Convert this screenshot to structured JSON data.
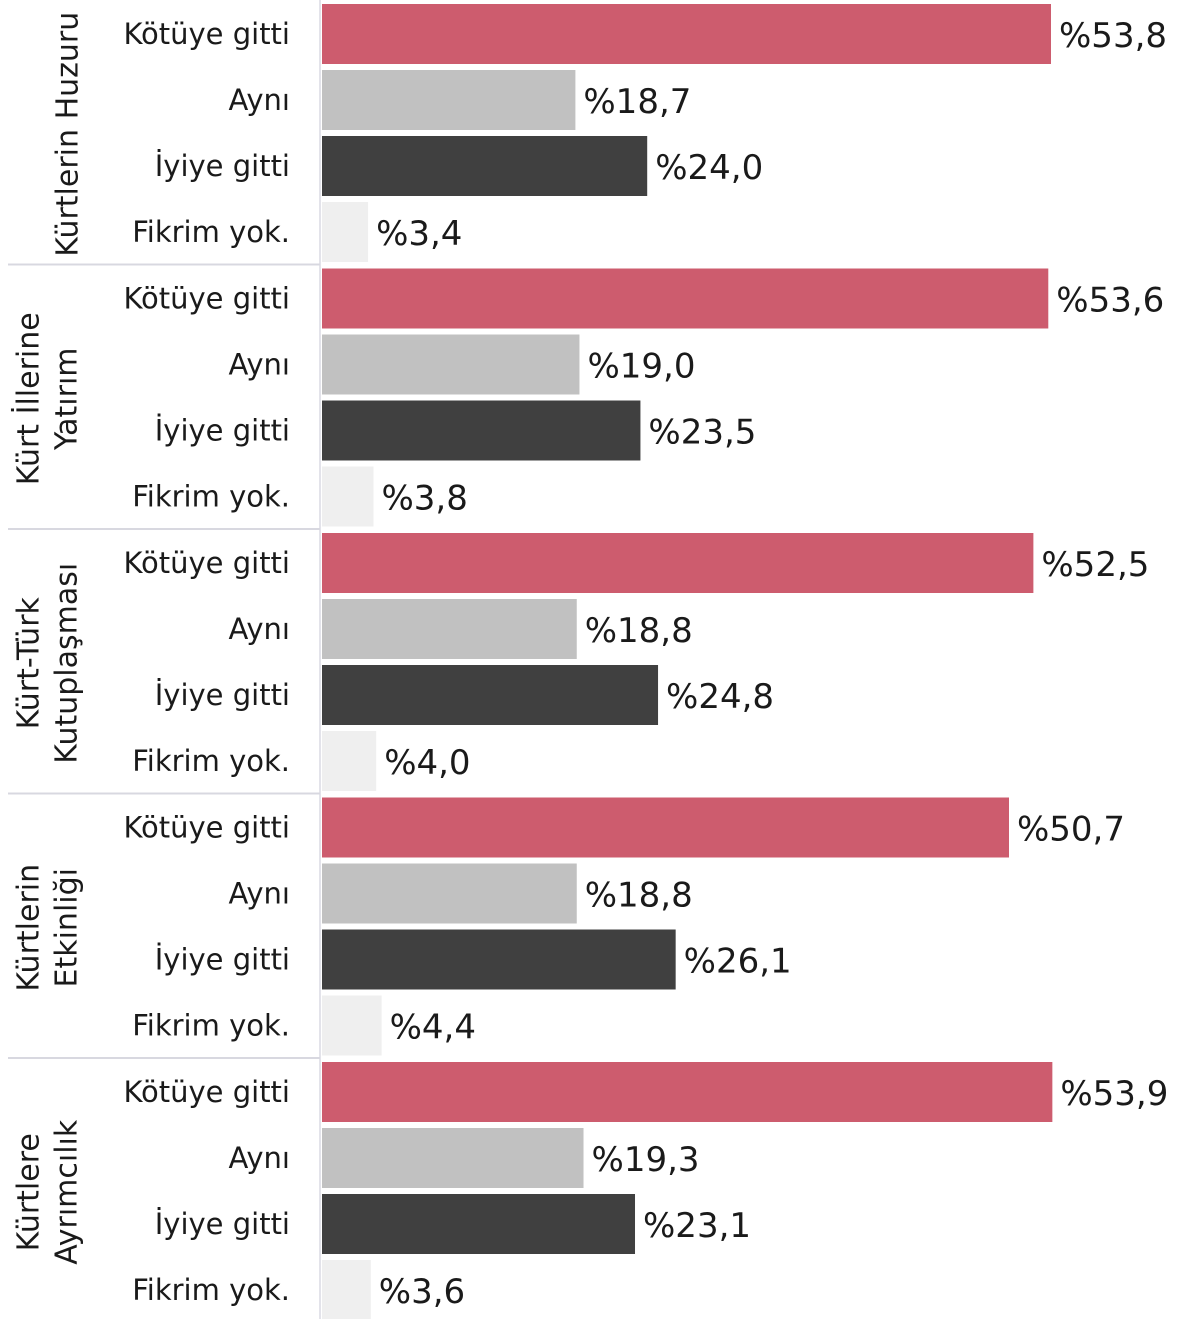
{
  "chart_data": {
    "type": "bar",
    "orientation": "horizontal",
    "categories": [
      "Kötüye gitti",
      "Aynı",
      "İyiye gitti",
      "Fikrim yok."
    ],
    "colors": [
      "#cd5c6e",
      "#c1c1c1",
      "#404040",
      "#efefef"
    ],
    "value_prefix": "%",
    "decimal_separator": ",",
    "xlim": [
      0,
      60
    ],
    "grid": false,
    "legend": "none",
    "groups": [
      {
        "title_lines": [
          "Kürtlerin Huzuru"
        ],
        "values": [
          53.8,
          18.7,
          24.0,
          3.4
        ]
      },
      {
        "title_lines": [
          "Kürt İllerine",
          "Yatırım"
        ],
        "values": [
          53.6,
          19.0,
          23.5,
          3.8
        ]
      },
      {
        "title_lines": [
          "Kürt-Türk",
          "Kutuplaşması"
        ],
        "values": [
          52.5,
          18.8,
          24.8,
          4.0
        ]
      },
      {
        "title_lines": [
          "Kürtlerin",
          "Etkinliği"
        ],
        "values": [
          50.7,
          18.8,
          26.1,
          4.4
        ]
      },
      {
        "title_lines": [
          "Kürtlere",
          "Ayrımcılık"
        ],
        "values": [
          53.9,
          19.3,
          23.1,
          3.6
        ]
      }
    ]
  }
}
